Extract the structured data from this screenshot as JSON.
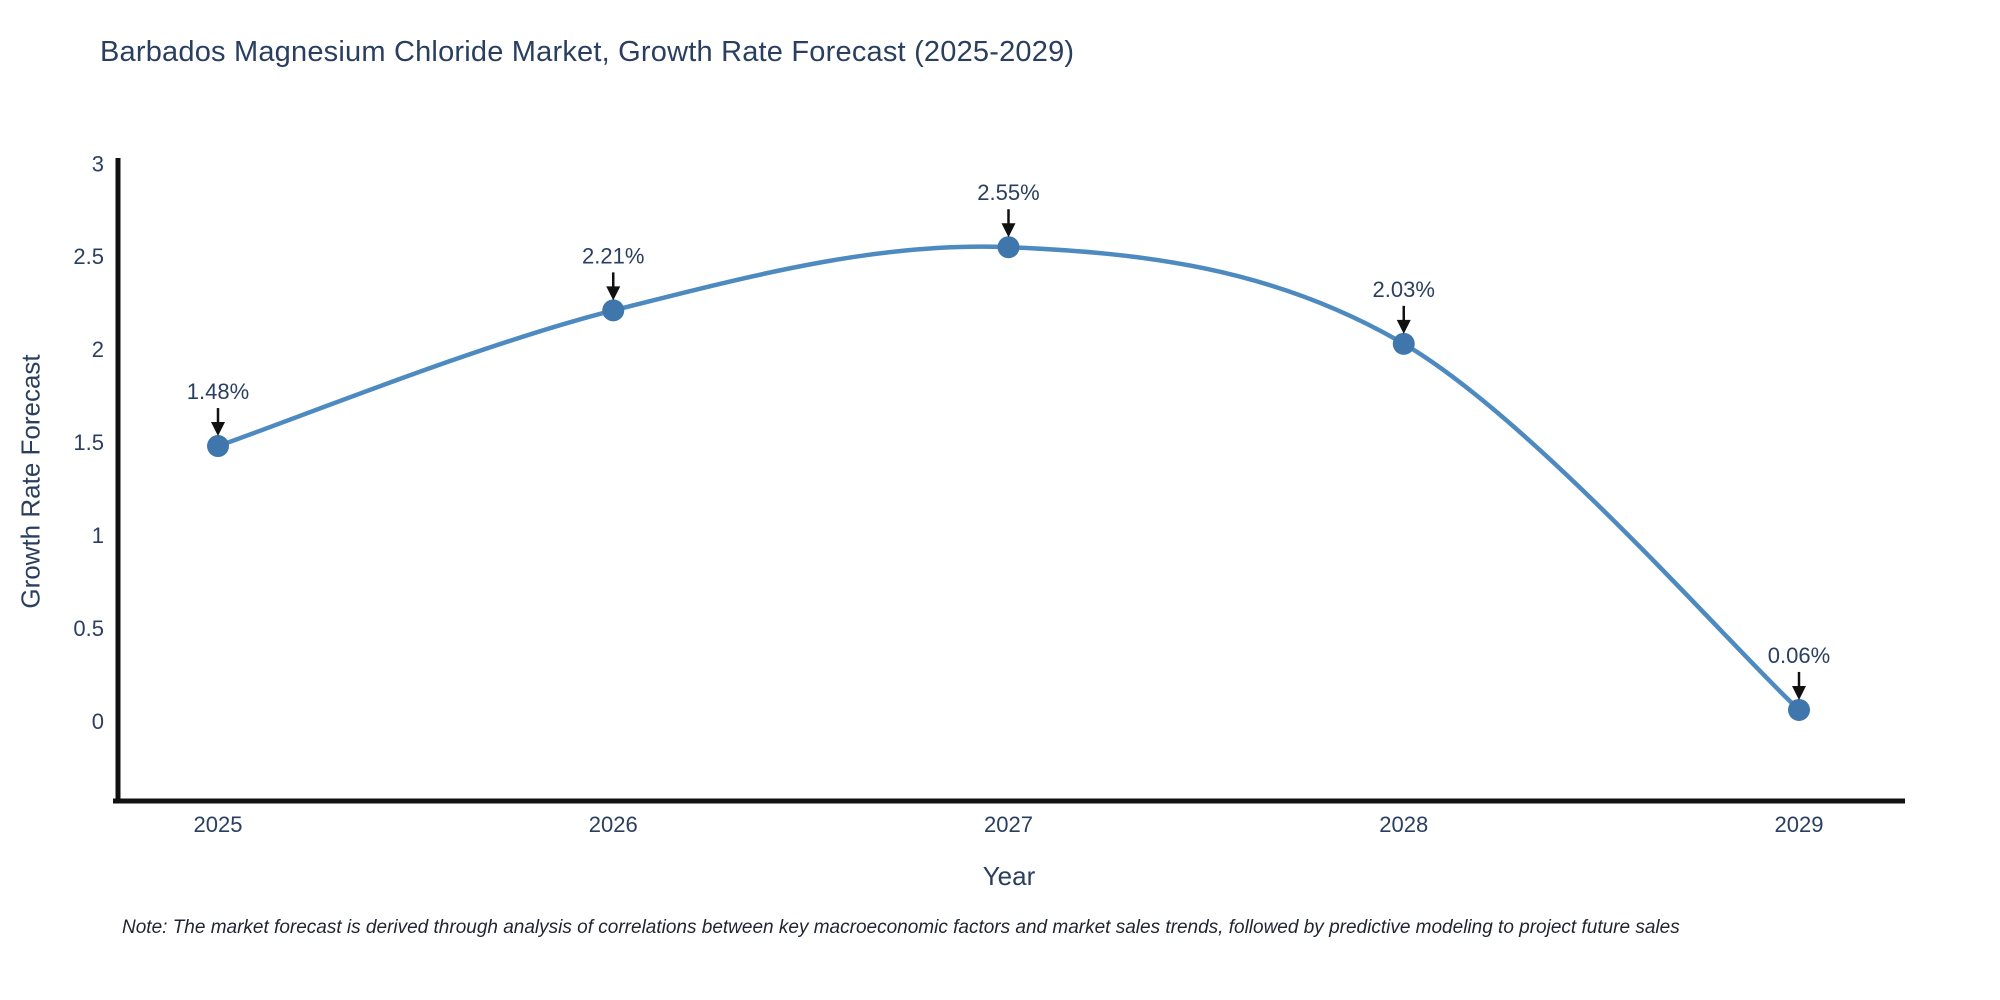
{
  "title": "Barbados Magnesium Chloride Market, Growth Rate Forecast (2025-2029)",
  "note": "Note: The market forecast is derived through analysis of correlations between key macroeconomic factors and market sales trends, followed by predictive modeling to project future sales",
  "chart_data": {
    "type": "line",
    "title": "Barbados Magnesium Chloride Market, Growth Rate Forecast (2025-2029)",
    "xlabel": "Year",
    "ylabel": "Growth Rate Forecast",
    "categories": [
      "2025",
      "2026",
      "2027",
      "2028",
      "2029"
    ],
    "values": [
      1.48,
      2.21,
      2.55,
      2.03,
      0.06
    ],
    "point_labels": [
      "1.48%",
      "2.21%",
      "2.55%",
      "2.03%",
      "0.06%"
    ],
    "ytick_labels": [
      "0",
      "0.5",
      "1",
      "1.5",
      "2",
      "2.5",
      "3"
    ],
    "ytick_values": [
      0,
      0.5,
      1,
      1.5,
      2,
      2.5,
      3
    ],
    "ylim": [
      -0.43,
      3.03
    ],
    "grid": false,
    "legend": "none",
    "line_shape": "spline",
    "colors": {
      "line": "#4d8ac0",
      "marker": "#3f76ab",
      "text": "#2a3f5f",
      "axis": "#111111",
      "annotation_arrow": "#111111"
    }
  }
}
